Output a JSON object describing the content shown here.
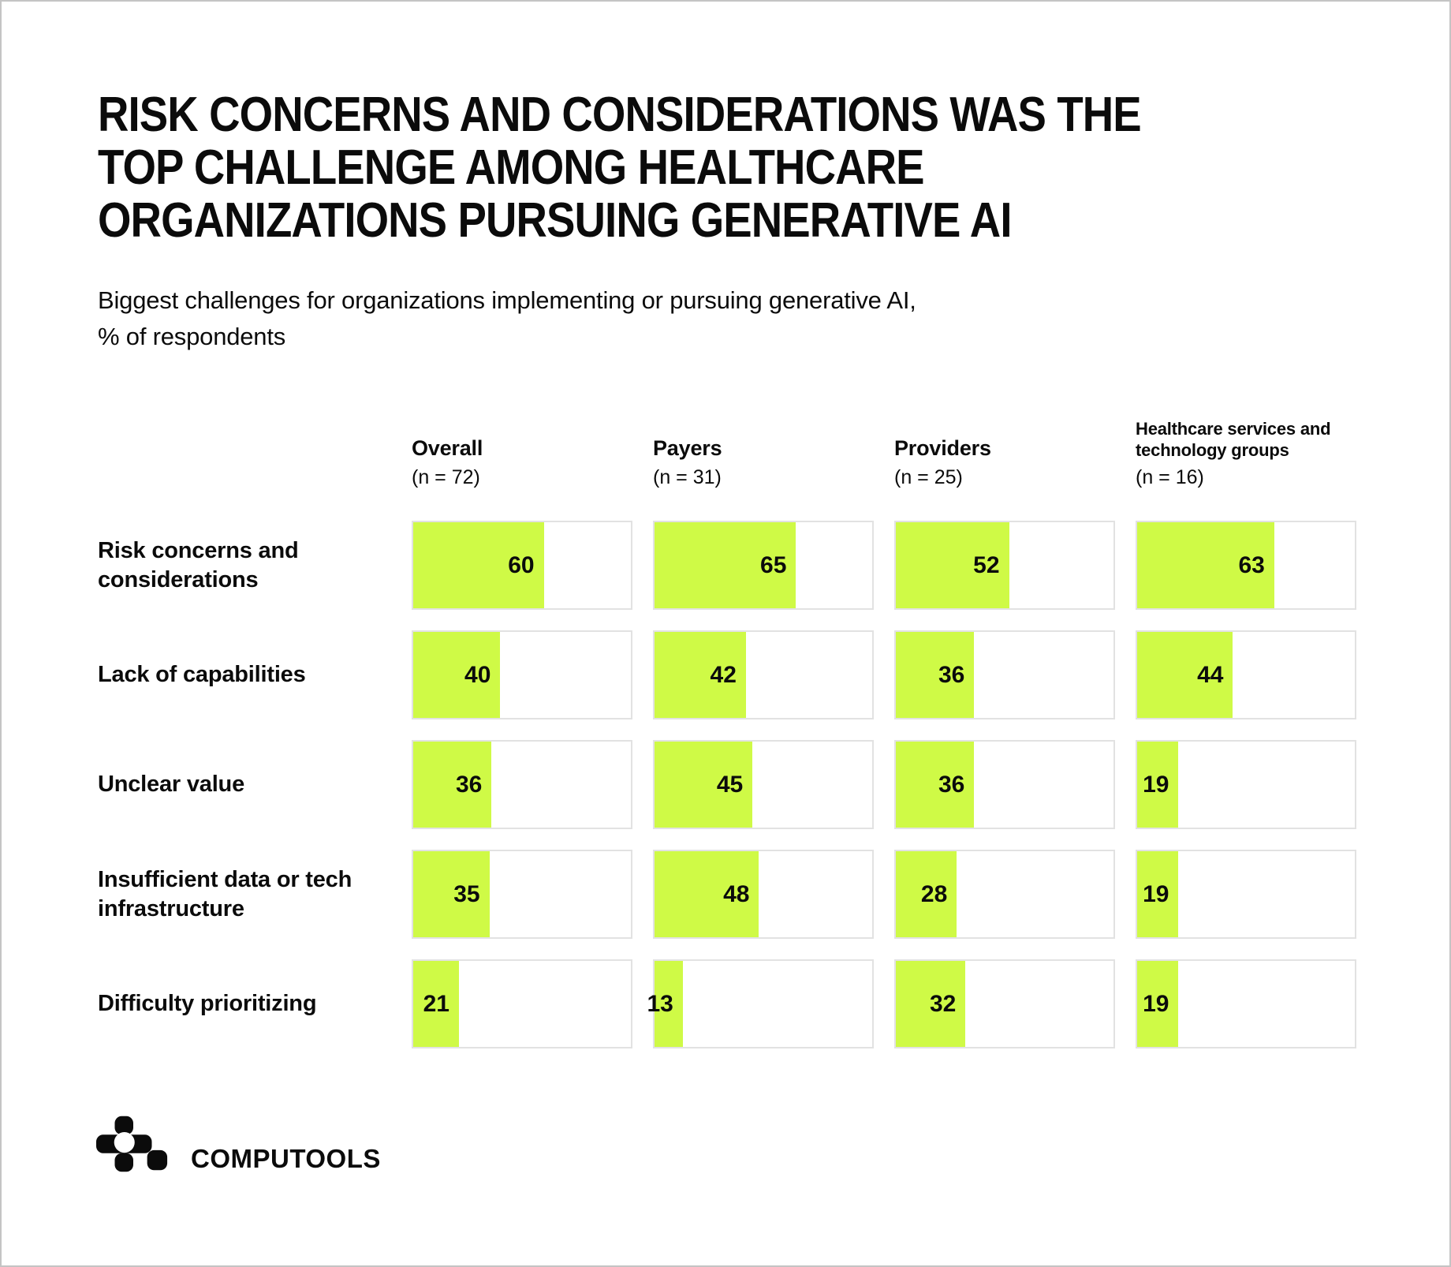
{
  "page": {
    "title_lines": [
      "RISK CONCERNS AND CONSIDERATIONS WAS THE",
      "TOP CHALLENGE AMONG HEALTHCARE",
      "ORGANIZATIONS PURSUING GENERATIVE AI"
    ],
    "subtitle_lines": [
      "Biggest challenges for organizations implementing or pursuing generative AI,",
      "% of respondents"
    ]
  },
  "chart_data": {
    "type": "bar",
    "orientation": "horizontal",
    "title": "Biggest challenges for organizations implementing or pursuing generative AI",
    "unit": "% of respondents",
    "value_range": [
      0,
      100
    ],
    "bar_color": "#CFFA46",
    "track_border_color": "#E2E2E2",
    "grid": "off",
    "columns": [
      {
        "name_lines": [
          "Overall"
        ],
        "n_label": "(n = 72)"
      },
      {
        "name_lines": [
          "Payers"
        ],
        "n_label": "(n = 31)"
      },
      {
        "name_lines": [
          "Providers"
        ],
        "n_label": "(n = 25)"
      },
      {
        "name_lines": [
          "Healthcare services and",
          "technology groups"
        ],
        "n_label": "(n = 16)"
      }
    ],
    "rows": [
      {
        "label_lines": [
          "Risk concerns and",
          "considerations"
        ],
        "values": [
          60,
          65,
          52,
          63
        ]
      },
      {
        "label_lines": [
          "Lack of capabilities"
        ],
        "values": [
          40,
          42,
          36,
          44
        ]
      },
      {
        "label_lines": [
          "Unclear value"
        ],
        "values": [
          36,
          45,
          36,
          19
        ]
      },
      {
        "label_lines": [
          "Insufficient data or tech",
          "infrastructure"
        ],
        "values": [
          35,
          48,
          28,
          19
        ]
      },
      {
        "label_lines": [
          "Difficulty prioritizing"
        ],
        "values": [
          21,
          13,
          32,
          19
        ]
      }
    ]
  },
  "footer": {
    "brand": "COMPUTOOLS"
  }
}
